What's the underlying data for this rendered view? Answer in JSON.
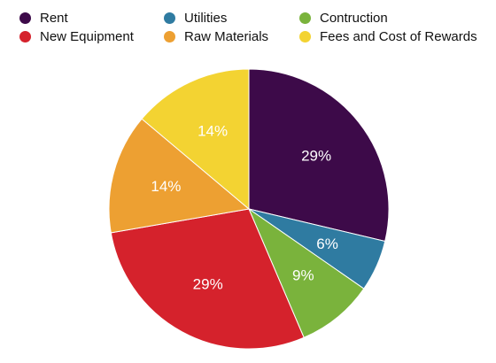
{
  "chart_data": {
    "type": "pie",
    "legend_position": "top",
    "start_angle_deg": 0,
    "direction": "clockwise",
    "slices": [
      {
        "label": "Rent",
        "value": 29,
        "display": "29%",
        "color": "#3d0a49"
      },
      {
        "label": "Utilities",
        "value": 6,
        "display": "6%",
        "color": "#2f7ba1"
      },
      {
        "label": "Contruction",
        "value": 9,
        "display": "9%",
        "color": "#7ab33c"
      },
      {
        "label": "New Equipment",
        "value": 29,
        "display": "29%",
        "color": "#d5222c"
      },
      {
        "label": "Raw Materials",
        "value": 14,
        "display": "14%",
        "color": "#eda032"
      },
      {
        "label": "Fees and Cost of Rewards",
        "value": 14,
        "display": "14%",
        "color": "#f3d332"
      }
    ]
  }
}
